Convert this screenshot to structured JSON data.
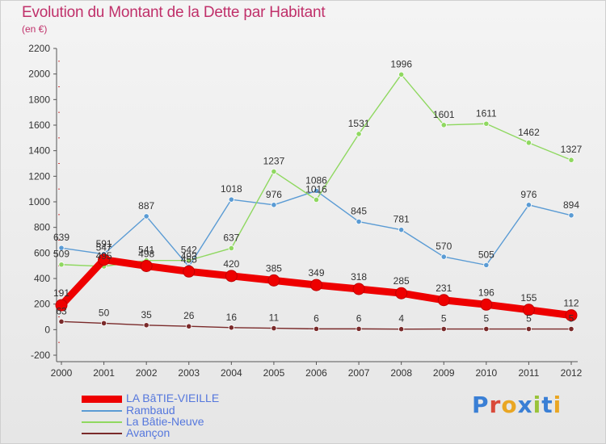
{
  "header": {
    "title": "Evolution du Montant de la Dette par Habitant",
    "unit": "(en €)"
  },
  "brand": {
    "text": "Proxiti",
    "letter_colors": [
      "#3a7fd5",
      "#d94a3a",
      "#e9a623",
      "#3a7fd5",
      "#9ac33a",
      "#3a7fd5",
      "#e9a623"
    ]
  },
  "chart_data": {
    "type": "line",
    "title": "Evolution du Montant de la Dette par Habitant",
    "subtitle": "(en €)",
    "x": [
      "2000",
      "2001",
      "2002",
      "2003",
      "2004",
      "2005",
      "2006",
      "2007",
      "2008",
      "2009",
      "2010",
      "2011",
      "2012"
    ],
    "ylim": [
      -200,
      2200
    ],
    "yticks": [
      -200,
      0,
      200,
      400,
      600,
      800,
      1000,
      1200,
      1400,
      1600,
      1800,
      2000,
      2200
    ],
    "grid": false,
    "legend_position": "bottom-left",
    "series": [
      {
        "name": "LA BâTIE-VIEILLE",
        "color": "#ee0000",
        "values": [
          191,
          547,
          498,
          455,
          420,
          385,
          349,
          318,
          285,
          231,
          196,
          155,
          112
        ]
      },
      {
        "name": "Rambaud",
        "color": "#5a9bd4",
        "values": [
          639,
          591,
          887,
          493,
          1018,
          976,
          1086,
          845,
          781,
          570,
          505,
          976,
          894
        ]
      },
      {
        "name": "La Bâtie-Neuve",
        "color": "#8fd860",
        "values": [
          509,
          495,
          541,
          542,
          637,
          1237,
          1016,
          1531,
          1996,
          1601,
          1611,
          1462,
          1327
        ]
      },
      {
        "name": "Avançon",
        "color": "#7a2a2a",
        "values": [
          63,
          50,
          35,
          26,
          16,
          11,
          6,
          6,
          4,
          5,
          5,
          5,
          5
        ]
      }
    ]
  }
}
